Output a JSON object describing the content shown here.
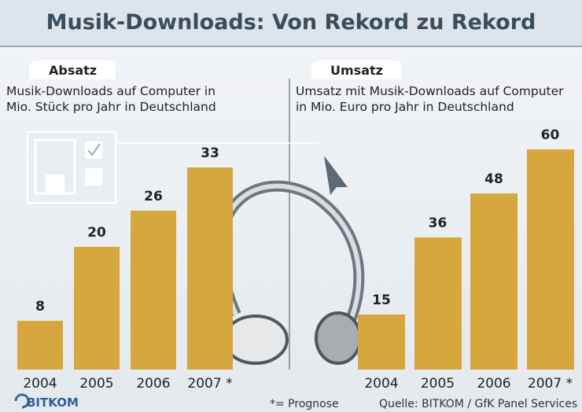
{
  "title": "Musik-Downloads: Von Rekord zu Rekord",
  "chart_data": [
    {
      "type": "bar",
      "title": "Absatz",
      "subtitle": [
        "Musik-Downloads auf Computer in",
        "Mio. Stück pro Jahr in Deutschland"
      ],
      "categories": [
        "2004",
        "2005",
        "2006",
        "2007 *"
      ],
      "values": [
        8,
        20,
        26,
        33
      ],
      "color": "#d6a73c"
    },
    {
      "type": "bar",
      "title": "Umsatz",
      "subtitle": [
        "Umsatz mit Musik-Downloads auf Computer",
        "in Mio. Euro pro Jahr in Deutschland"
      ],
      "categories": [
        "2004",
        "2005",
        "2006",
        "2007 *"
      ],
      "values": [
        15,
        36,
        48,
        60
      ],
      "color": "#d6a73c"
    }
  ],
  "logo": "BITKOM",
  "footnote": "*= Prognose",
  "source": "Quelle: BITKOM / GfK Panel Services"
}
